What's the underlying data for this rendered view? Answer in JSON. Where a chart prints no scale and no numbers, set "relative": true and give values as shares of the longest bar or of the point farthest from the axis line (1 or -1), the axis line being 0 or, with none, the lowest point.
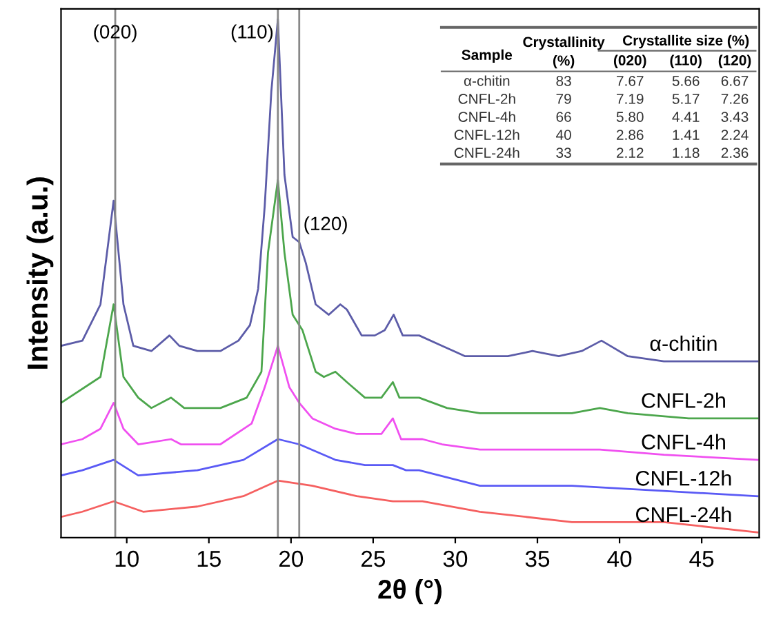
{
  "chart_data": {
    "type": "line",
    "relative": true,
    "xlabel": "2θ (°)",
    "ylabel": "Intensity (a.u.)",
    "xlim": [
      6,
      48.5
    ],
    "xticks": [
      10,
      15,
      20,
      25,
      30,
      35,
      40,
      45
    ],
    "tick_labels": "x",
    "grid": false,
    "marker": "none",
    "line_style": "solid",
    "series": [
      {
        "name": "α-chitin",
        "color": "#5c5ca8",
        "x": [
          6.0,
          7.3,
          8.4,
          9.2,
          9.8,
          10.4,
          11.5,
          12.6,
          13.2,
          14.3,
          15.7,
          16.8,
          17.5,
          18.0,
          18.4,
          18.8,
          19.2,
          19.6,
          20.1,
          20.5,
          20.9,
          21.5,
          22.3,
          23.0,
          23.4,
          24.3,
          25.1,
          25.7,
          26.25,
          26.8,
          27.8,
          29.2,
          30.6,
          33.2,
          34.7,
          36.3,
          37.7,
          38.9,
          40.5,
          42.7,
          45.6,
          48.4
        ],
        "values": [
          0.37,
          0.38,
          0.45,
          0.65,
          0.45,
          0.37,
          0.36,
          0.39,
          0.37,
          0.36,
          0.36,
          0.38,
          0.41,
          0.48,
          0.64,
          0.86,
          1.0,
          0.7,
          0.58,
          0.57,
          0.53,
          0.45,
          0.43,
          0.45,
          0.44,
          0.39,
          0.39,
          0.4,
          0.43,
          0.39,
          0.39,
          0.37,
          0.35,
          0.35,
          0.36,
          0.35,
          0.36,
          0.38,
          0.35,
          0.34,
          0.34,
          0.34
        ]
      },
      {
        "name": "CNFL-2h",
        "color": "#4ca64c",
        "x": [
          6.0,
          8.4,
          9.2,
          9.8,
          10.7,
          11.5,
          12.7,
          13.5,
          15.7,
          17.3,
          18.2,
          18.6,
          19.2,
          19.6,
          20.1,
          20.7,
          21.5,
          22.0,
          22.7,
          23.4,
          24.5,
          25.5,
          26.2,
          26.6,
          27.8,
          29.5,
          31.5,
          33.2,
          34.8,
          37.1,
          38.8,
          40.5,
          44.2,
          48.4
        ],
        "values": [
          0.26,
          0.31,
          0.45,
          0.31,
          0.27,
          0.25,
          0.27,
          0.25,
          0.25,
          0.27,
          0.32,
          0.55,
          0.69,
          0.55,
          0.43,
          0.4,
          0.32,
          0.31,
          0.32,
          0.3,
          0.27,
          0.27,
          0.3,
          0.27,
          0.27,
          0.25,
          0.24,
          0.24,
          0.24,
          0.24,
          0.25,
          0.24,
          0.23,
          0.23
        ]
      },
      {
        "name": "CNFL-4h",
        "color": "#f050f0",
        "x": [
          6.0,
          7.3,
          8.4,
          9.2,
          9.8,
          10.7,
          12.7,
          13.3,
          15.7,
          17.6,
          18.4,
          19.2,
          19.9,
          20.5,
          21.3,
          22.7,
          24.0,
          25.5,
          26.2,
          26.7,
          28.0,
          29.2,
          31.5,
          34.8,
          38.8,
          42.7,
          48.4
        ],
        "values": [
          0.18,
          0.19,
          0.21,
          0.26,
          0.21,
          0.18,
          0.19,
          0.18,
          0.18,
          0.22,
          0.29,
          0.37,
          0.29,
          0.26,
          0.23,
          0.21,
          0.2,
          0.2,
          0.23,
          0.19,
          0.19,
          0.18,
          0.17,
          0.17,
          0.17,
          0.16,
          0.15
        ]
      },
      {
        "name": "CNFL-12h",
        "color": "#5a5af5",
        "x": [
          6.0,
          7.3,
          9.2,
          10.7,
          14.3,
          17.1,
          19.2,
          20.5,
          22.7,
          24.5,
          26.2,
          27.0,
          27.8,
          31.5,
          37.1,
          42.7,
          48.4
        ],
        "values": [
          0.12,
          0.13,
          0.15,
          0.12,
          0.13,
          0.15,
          0.19,
          0.18,
          0.15,
          0.14,
          0.14,
          0.13,
          0.13,
          0.1,
          0.1,
          0.09,
          0.08
        ]
      },
      {
        "name": "CNFL-24h",
        "color": "#f56060",
        "x": [
          6.0,
          7.3,
          9.2,
          11.0,
          14.3,
          17.1,
          19.2,
          21.3,
          24.0,
          26.2,
          28.0,
          31.5,
          37.1,
          42.7,
          48.4
        ],
        "values": [
          0.04,
          0.05,
          0.07,
          0.05,
          0.06,
          0.08,
          0.11,
          0.1,
          0.08,
          0.07,
          0.07,
          0.05,
          0.03,
          0.03,
          0.01
        ]
      }
    ],
    "ref_lines": [
      {
        "axis": "x",
        "value": 9.3,
        "color": "#888888"
      },
      {
        "axis": "x",
        "value": 19.2,
        "color": "#888888"
      },
      {
        "axis": "x",
        "value": 20.5,
        "color": "#888888"
      }
    ],
    "annotations": [
      {
        "text": "(020)",
        "x": 9.3,
        "y": 0.99
      },
      {
        "text": "(110)",
        "x": 19.2,
        "y": 0.99
      },
      {
        "text": "(120)",
        "x": 20.5,
        "y": 0.62
      },
      "Sample",
      "Crystallinity\n(%)",
      "Crystallite size (%)",
      "(020)",
      "(110)",
      "(120)",
      "α-chitin",
      "83",
      "7.67",
      "5.66",
      "6.67",
      "CNFL-2h",
      "79",
      "7.19",
      "5.17",
      "7.26",
      "CNFL-4h",
      "66",
      "5.80",
      "4.41",
      "3.43",
      "CNFL-12h",
      "40",
      "2.86",
      "1.41",
      "2.24",
      "CNFL-24h",
      "33",
      "2.12",
      "1.18",
      "2.36"
    ]
  }
}
